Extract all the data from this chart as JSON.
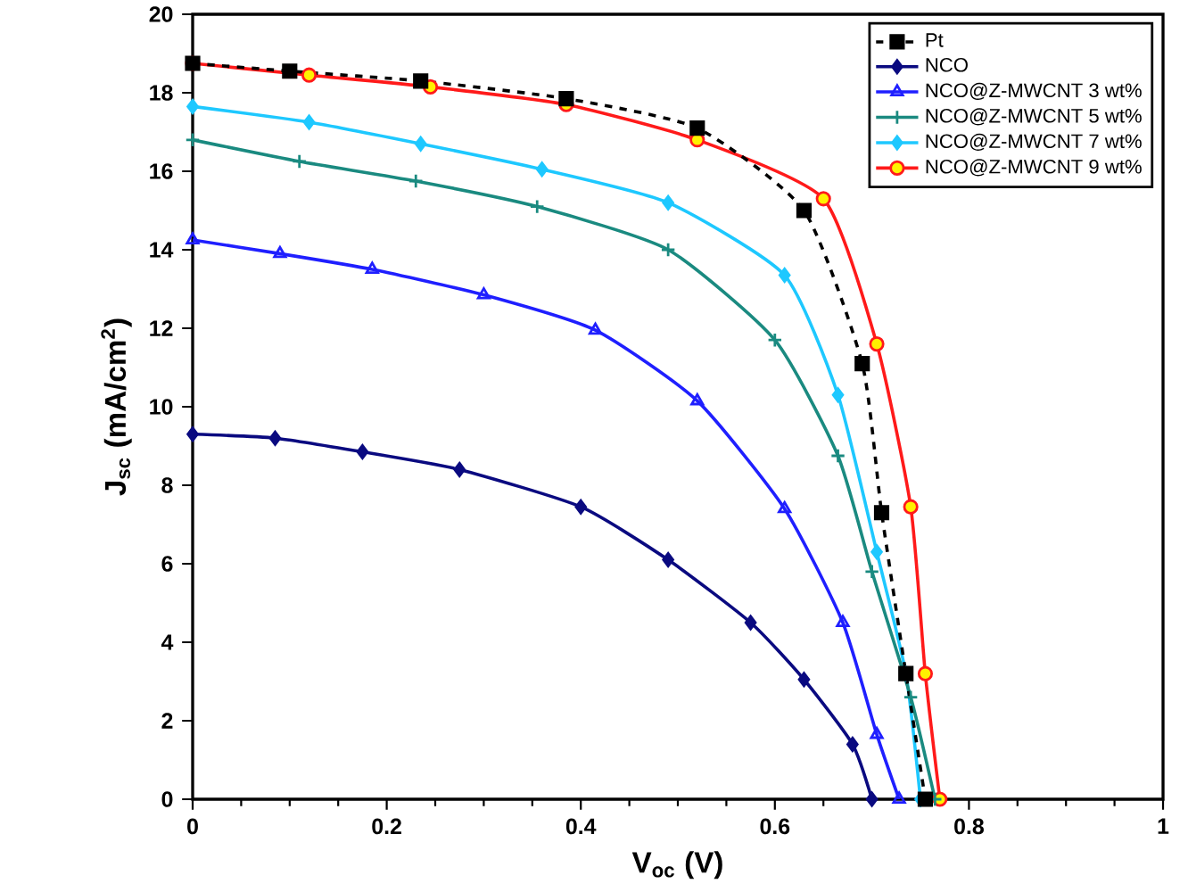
{
  "chart_data": {
    "type": "line",
    "xlabel": "**V**$_{oc}$ (V)",
    "ylabel": "**J**$_{sc}$ (mA/cm$^{2}$)",
    "xlim": [
      0,
      1
    ],
    "ylim": [
      0,
      20
    ],
    "xticks": [
      0,
      0.2,
      0.4,
      0.6,
      0.8,
      1
    ],
    "yticks": [
      0,
      2,
      4,
      6,
      8,
      10,
      12,
      14,
      16,
      18,
      20
    ],
    "legend": "top right",
    "grid": false,
    "series": [
      {
        "name": "Pt",
        "color": "#000000",
        "marker": "square",
        "line_style": "dashed",
        "x": [
          0,
          0.1,
          0.235,
          0.385,
          0.52,
          0.63,
          0.69,
          0.71,
          0.735,
          0.755
        ],
        "values": [
          18.75,
          18.55,
          18.3,
          17.85,
          17.1,
          15.0,
          11.1,
          7.3,
          3.2,
          0
        ]
      },
      {
        "name": "NCO",
        "color": "#0a0a80",
        "marker": "diamond",
        "line_style": "solid",
        "x": [
          0,
          0.085,
          0.175,
          0.275,
          0.4,
          0.49,
          0.575,
          0.63,
          0.68,
          0.7
        ],
        "values": [
          9.3,
          9.2,
          8.85,
          8.4,
          7.45,
          6.1,
          4.5,
          3.05,
          1.4,
          0
        ]
      },
      {
        "name": "NCO@Z-MWCNT 3 wt%",
        "color": "#1f1fff",
        "marker": "triangle",
        "line_style": "solid",
        "x": [
          0,
          0.09,
          0.185,
          0.3,
          0.415,
          0.52,
          0.61,
          0.67,
          0.705,
          0.728
        ],
        "values": [
          14.25,
          13.9,
          13.5,
          12.85,
          11.95,
          10.15,
          7.4,
          4.5,
          1.65,
          0
        ]
      },
      {
        "name": "NCO@Z-MWCNT 5 wt%",
        "color": "#1a8a80",
        "marker": "cross",
        "line_style": "solid",
        "x": [
          0,
          0.11,
          0.23,
          0.355,
          0.49,
          0.6,
          0.665,
          0.7,
          0.74,
          0.765
        ],
        "values": [
          16.8,
          16.25,
          15.75,
          15.1,
          14.0,
          11.7,
          8.75,
          5.8,
          2.6,
          0
        ]
      },
      {
        "name": "NCO@Z-MWCNT 7 wt%",
        "color": "#1ec8ff",
        "marker": "diamond",
        "line_style": "solid",
        "x": [
          0,
          0.12,
          0.235,
          0.36,
          0.49,
          0.61,
          0.665,
          0.705,
          0.735,
          0.75
        ],
        "values": [
          17.65,
          17.25,
          16.7,
          16.05,
          15.2,
          13.35,
          10.3,
          6.3,
          3.2,
          0
        ]
      },
      {
        "name": "NCO@Z-MWCNT 9 wt%",
        "color": "#ff1a1a",
        "marker": "circle",
        "line_style": "solid",
        "x": [
          0,
          0.12,
          0.245,
          0.385,
          0.52,
          0.65,
          0.705,
          0.74,
          0.755,
          0.77
        ],
        "values": [
          18.75,
          18.45,
          18.15,
          17.7,
          16.8,
          15.3,
          11.6,
          7.45,
          3.2,
          0
        ]
      }
    ]
  }
}
